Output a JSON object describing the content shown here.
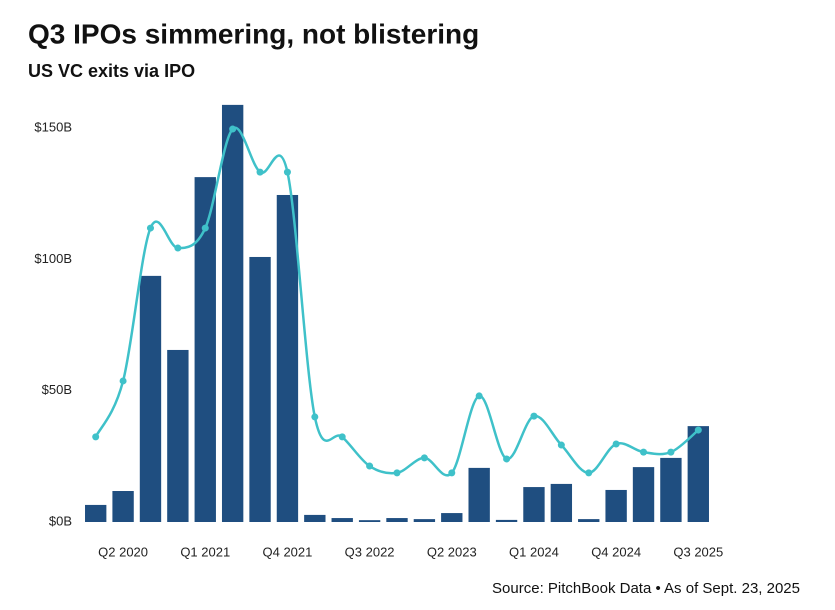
{
  "chart_data": {
    "type": "bar_line",
    "title": "Q3 IPOs simmering, not blistering",
    "subtitle": "US VC exits via IPO",
    "source": "Source: PitchBook Data • As of Sept. 23, 2025",
    "categories": [
      null,
      "Q2 2020",
      null,
      null,
      "Q1 2021",
      null,
      null,
      "Q4 2021",
      null,
      null,
      "Q3 2022",
      null,
      null,
      "Q2 2023",
      null,
      null,
      "Q1 2024",
      null,
      null,
      "Q4 2024",
      null,
      null,
      "Q3 2025"
    ],
    "series": [
      {
        "type": "bar",
        "color": "#1f4e80",
        "values": [
          6.5,
          11.8,
          93.7,
          65.5,
          131.3,
          158.8,
          100.9,
          124.5,
          2.7,
          1.5,
          0.7,
          1.5,
          1.1,
          3.4,
          20.6,
          0.8,
          13.3,
          14.5,
          1.1,
          12.2,
          20.9,
          24.4,
          36.5
        ]
      },
      {
        "type": "line",
        "color": "#3fc1c9",
        "values": [
          32.4,
          53.7,
          111.9,
          104.3,
          111.9,
          149.6,
          133.2,
          133.2,
          40,
          32.4,
          21.3,
          18.7,
          24.4,
          18.7,
          48,
          24,
          40.3,
          29.3,
          18.7,
          29.7,
          26.6,
          26.6,
          35
        ]
      }
    ],
    "ylim": [
      0,
      150
    ],
    "yticks": [
      {
        "value": 0,
        "label": "$0B"
      },
      {
        "value": 50,
        "label": "$50B"
      },
      {
        "value": 100,
        "label": "$100B"
      },
      {
        "value": 150,
        "label": "$150B"
      }
    ],
    "grid": false
  }
}
